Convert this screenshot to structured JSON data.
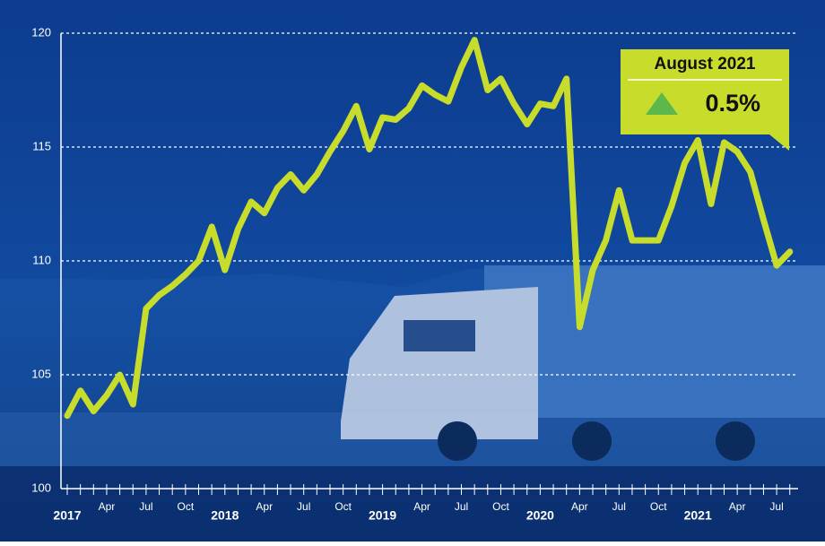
{
  "chart_data": {
    "type": "line",
    "categories": [
      "2017",
      null,
      null,
      "Apr",
      null,
      null,
      "Jul",
      null,
      null,
      "Oct",
      null,
      null,
      "2018",
      null,
      null,
      "Apr",
      null,
      null,
      "Jul",
      null,
      null,
      "Oct",
      null,
      null,
      "2019",
      null,
      null,
      "Apr",
      null,
      null,
      "Jul",
      null,
      null,
      "Oct",
      null,
      null,
      "2020",
      null,
      null,
      "Apr",
      null,
      null,
      "Jul",
      null,
      null,
      "Oct",
      null,
      null,
      "2021",
      null,
      null,
      "Apr",
      null,
      null,
      "Jul",
      null
    ],
    "values": [
      103.2,
      104.3,
      103.4,
      104.1,
      105.0,
      103.7,
      107.9,
      108.5,
      108.9,
      109.4,
      110.0,
      111.5,
      109.6,
      111.4,
      112.6,
      112.1,
      113.2,
      113.8,
      113.1,
      113.8,
      114.8,
      115.7,
      116.8,
      114.9,
      116.3,
      116.2,
      116.7,
      117.7,
      117.3,
      117.0,
      118.5,
      119.7,
      117.5,
      118.0,
      116.9,
      116.0,
      116.9,
      116.8,
      118.0,
      107.1,
      109.6,
      110.9,
      113.1,
      110.9,
      110.9,
      110.9,
      112.4,
      114.3,
      115.3,
      112.5,
      115.2,
      114.8,
      113.9,
      111.8,
      109.8,
      110.4
    ],
    "color": "#c8dc2c",
    "ylim": [
      100,
      120
    ],
    "yticks": [
      100,
      105,
      110,
      115,
      120
    ],
    "grid": true,
    "callout": {
      "title": "August 2021",
      "change": {
        "value": 0.5,
        "label": "0.5%"
      }
    }
  }
}
